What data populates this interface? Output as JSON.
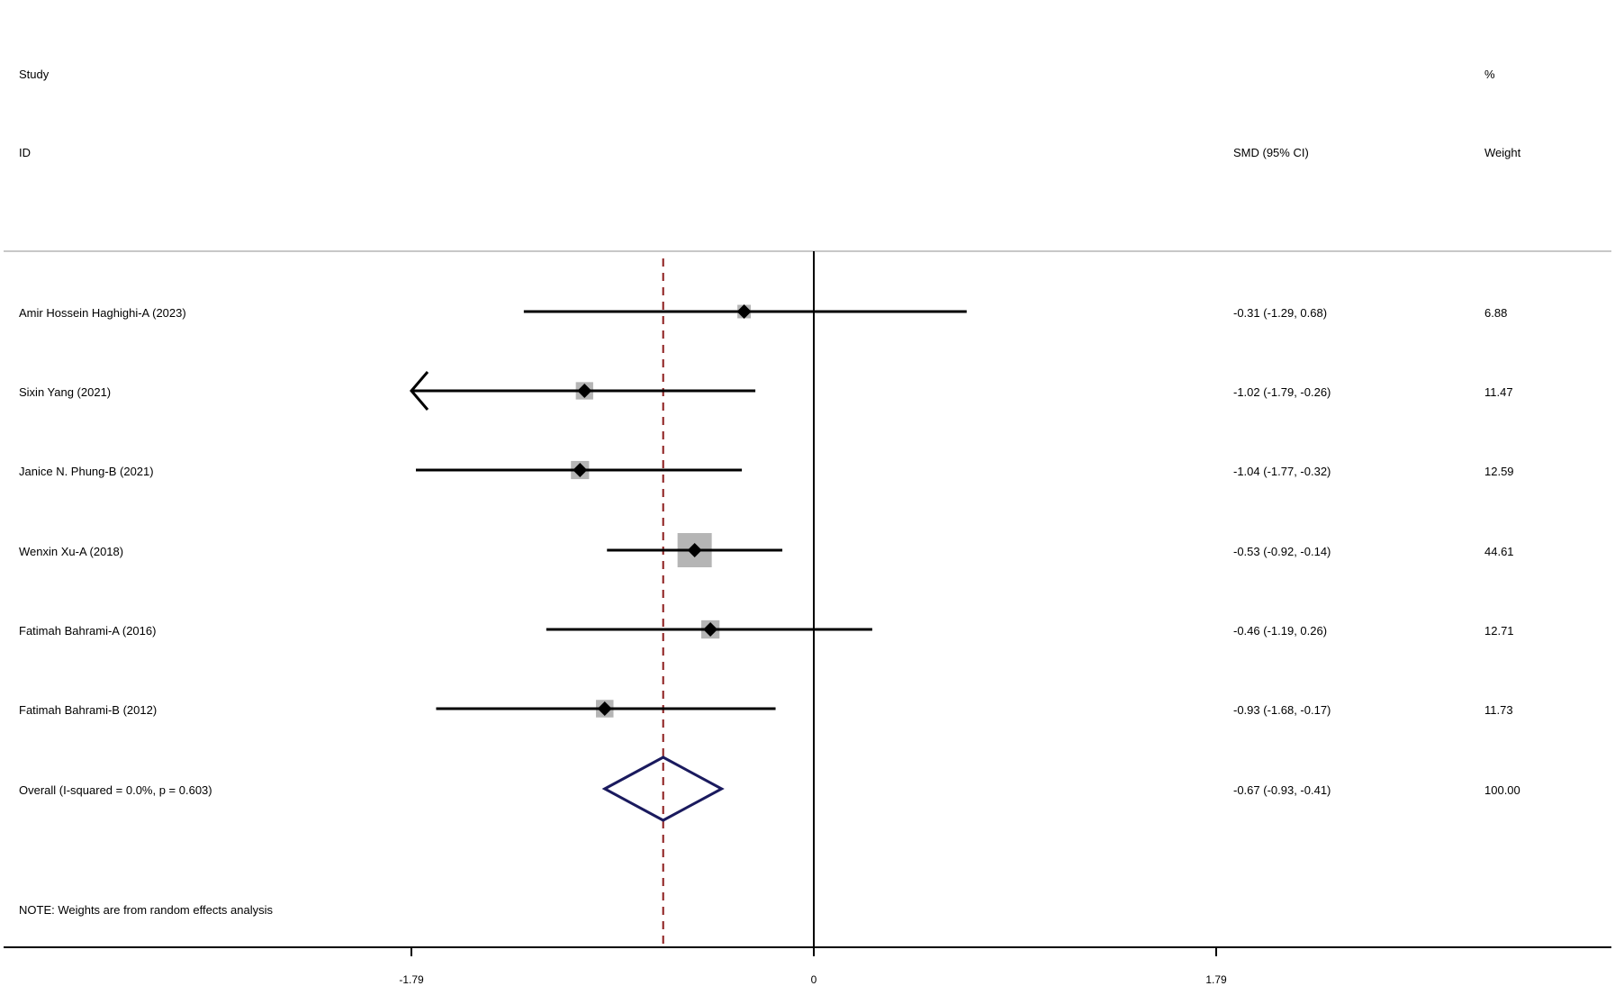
{
  "header": {
    "study_label": "Study",
    "id_label": "ID",
    "smd_label": "SMD (95% CI)",
    "pct_label": "%",
    "weight_label": "Weight"
  },
  "chart_data": {
    "type": "forest",
    "x_ticks": [
      -1.79,
      0,
      1.79
    ],
    "x_tick_labels": [
      "-1.79",
      "0",
      "1.79"
    ],
    "xlim": [
      -1.79,
      1.79
    ],
    "null_line": 0,
    "pooled_line": -0.67,
    "studies": [
      {
        "label": "Amir Hossein Haghighi-A (2023)",
        "smd": -0.31,
        "lower": -1.29,
        "upper": 0.68,
        "ci_text": "-0.31 (-1.29, 0.68)",
        "weight": 6.88,
        "weight_text": "6.88"
      },
      {
        "label": "Sixin Yang (2021)",
        "smd": -1.02,
        "lower": -1.79,
        "upper": -0.26,
        "ci_text": "-1.02 (-1.79, -0.26)",
        "weight": 11.47,
        "weight_text": "11.47",
        "arrow_left": true
      },
      {
        "label": "Janice N. Phung-B (2021)",
        "smd": -1.04,
        "lower": -1.77,
        "upper": -0.32,
        "ci_text": "-1.04 (-1.77, -0.32)",
        "weight": 12.59,
        "weight_text": "12.59"
      },
      {
        "label": "Wenxin Xu-A (2018)",
        "smd": -0.53,
        "lower": -0.92,
        "upper": -0.14,
        "ci_text": "-0.53 (-0.92, -0.14)",
        "weight": 44.61,
        "weight_text": "44.61"
      },
      {
        "label": "Fatimah Bahrami-A (2016)",
        "smd": -0.46,
        "lower": -1.19,
        "upper": 0.26,
        "ci_text": "-0.46 (-1.19, 0.26)",
        "weight": 12.71,
        "weight_text": "12.71"
      },
      {
        "label": "Fatimah Bahrami-B (2012)",
        "smd": -0.93,
        "lower": -1.68,
        "upper": -0.17,
        "ci_text": "-0.93 (-1.68, -0.17)",
        "weight": 11.73,
        "weight_text": "11.73"
      }
    ],
    "overall": {
      "label": "Overall  (I-squared = 0.0%, p = 0.603)",
      "smd": -0.67,
      "lower": -0.93,
      "upper": -0.41,
      "ci_text": "-0.67 (-0.93, -0.41)",
      "weight_text": "100.00"
    },
    "note": "NOTE: Weights are from random effects analysis",
    "colors": {
      "pooled_line": "#8b1a1a",
      "diamond": "#1a1a5e",
      "weight_box": "#b5b5b5",
      "marker": "#000000"
    }
  }
}
